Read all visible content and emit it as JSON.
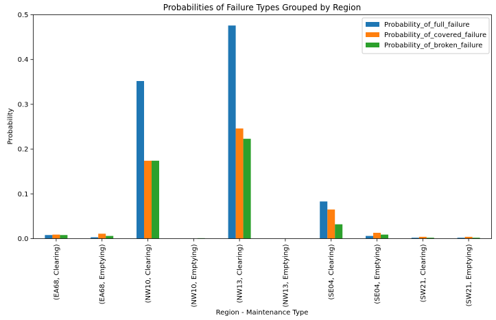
{
  "chart_data": {
    "type": "bar",
    "title": "Probabilities of Failure Types Grouped by Region",
    "xlabel": "Region - Maintenance Type",
    "ylabel": "Probability",
    "ylim": [
      0,
      0.5
    ],
    "yticks": [
      "0.0",
      "0.1",
      "0.2",
      "0.3",
      "0.4",
      "0.5"
    ],
    "legend_position": "top-right",
    "grid": false,
    "categories": [
      "(EA68, Clearing)",
      "(EA68, Emptying)",
      "(NW10, Clearing)",
      "(NW10, Emptying)",
      "(NW13, Clearing)",
      "(NW13, Emptying)",
      "(SE04, Clearing)",
      "(SE04, Emptying)",
      "(SW21, Clearing)",
      "(SW21, Emptying)"
    ],
    "series": [
      {
        "name": "Probability_of_full_failure",
        "color": "#1f77b4",
        "values": [
          0.008,
          0.003,
          0.352,
          0.0,
          0.476,
          0.0,
          0.083,
          0.006,
          0.002,
          0.002
        ]
      },
      {
        "name": "Probability_of_covered_failure",
        "color": "#ff7f0e",
        "values": [
          0.009,
          0.011,
          0.174,
          0.0,
          0.246,
          0.0,
          0.065,
          0.013,
          0.004,
          0.004
        ]
      },
      {
        "name": "Probability_of_broken_failure",
        "color": "#2ca02c",
        "values": [
          0.008,
          0.006,
          0.174,
          0.001,
          0.223,
          0.0,
          0.032,
          0.009,
          0.002,
          0.002
        ]
      }
    ]
  }
}
